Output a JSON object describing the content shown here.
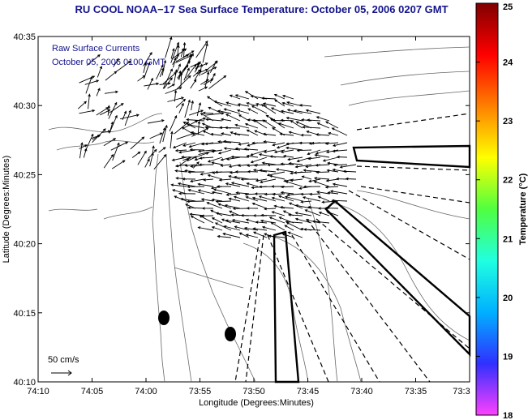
{
  "title": "RU COOL  NOAA−17  Sea Surface Temperature:  October 05, 2006 0207 GMT",
  "legend_text": {
    "line1": "Raw Surface Currents",
    "line2": "October 05, 2006 0100 GMT"
  },
  "scale_label": "50 cm/s",
  "axes": {
    "xlabel": "Longitude (Degrees:Minutes)",
    "ylabel": "Latitude (Degrees:Minutes)",
    "x_ticks": [
      "74:10",
      "74:05",
      "74:00",
      "73:55",
      "73:50",
      "73:45",
      "73:40",
      "73:35",
      "73:3"
    ],
    "y_ticks": [
      "40:35",
      "40:30",
      "40:25",
      "40:20",
      "40:15",
      "40:10"
    ]
  },
  "colorbar": {
    "label": "Temperature (°C)",
    "ticks": [
      "25",
      "24",
      "23",
      "22",
      "21",
      "20",
      "19",
      "18"
    ],
    "range": [
      18,
      25
    ],
    "colors": [
      "#ff40ff",
      "#3030ff",
      "#00b0ff",
      "#20ffe0",
      "#50ff40",
      "#ffff00",
      "#ff8000",
      "#ff0000",
      "#800000"
    ]
  },
  "colors": {
    "title": "#14148c",
    "inset_text": "#14148c"
  }
}
